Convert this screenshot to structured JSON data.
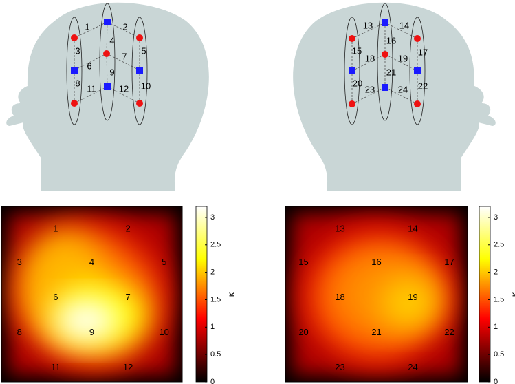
{
  "heads": [
    {
      "channels": [
        "1",
        "2",
        "3",
        "4",
        "5",
        "6",
        "7",
        "8",
        "9",
        "10",
        "11",
        "12"
      ]
    },
    {
      "channels": [
        "13",
        "14",
        "15",
        "16",
        "17",
        "18",
        "19",
        "20",
        "21",
        "22",
        "23",
        "24"
      ]
    }
  ],
  "maps": [
    {
      "labels": [
        "1",
        "2",
        "3",
        "4",
        "5",
        "6",
        "7",
        "8",
        "9",
        "10",
        "11",
        "12"
      ],
      "colorbar": {
        "label": "κ",
        "lim": [
          0,
          3.2
        ],
        "ticks": [
          0,
          0.5,
          1,
          1.5,
          2,
          2.5,
          3
        ]
      }
    },
    {
      "labels": [
        "13",
        "14",
        "15",
        "16",
        "17",
        "18",
        "19",
        "20",
        "21",
        "22",
        "23",
        "24"
      ],
      "colorbar": {
        "label": "κ",
        "lim": [
          0,
          3.2
        ],
        "ticks": [
          0,
          0.5,
          1,
          1.5,
          2,
          2.5,
          3
        ]
      }
    }
  ]
}
